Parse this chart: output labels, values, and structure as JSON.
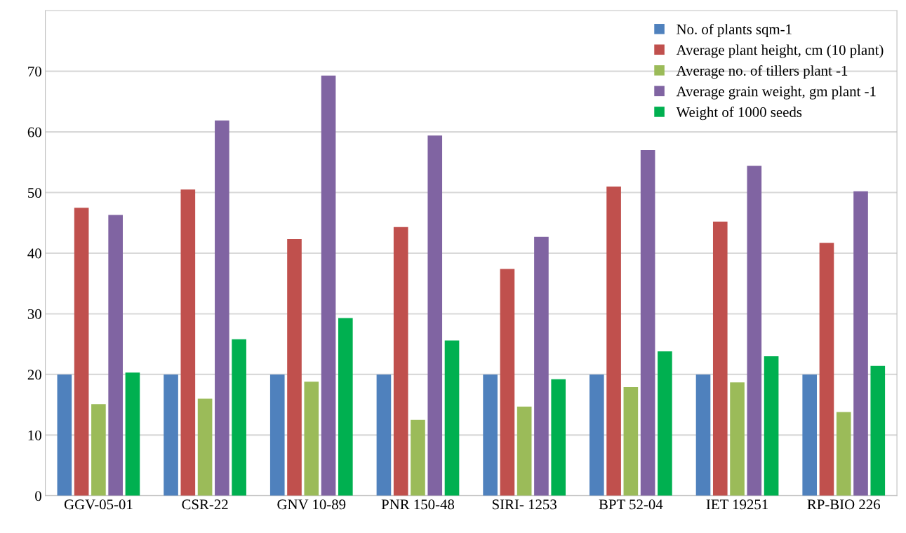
{
  "chart_data": {
    "type": "bar",
    "categories": [
      "GGV-05-01",
      "CSR-22",
      "GNV 10-89",
      "PNR 150-48",
      "SIRI- 1253",
      "BPT 52-04",
      "IET 19251",
      "RP-BIO 226"
    ],
    "series": [
      {
        "name": "No. of plants sqm-1",
        "color": "#4f81bd",
        "values": [
          20,
          20,
          20,
          20,
          20,
          20,
          20,
          20
        ]
      },
      {
        "name": "Average plant height, cm (10 plant)",
        "color": "#c0504d",
        "values": [
          47.5,
          50.5,
          42.3,
          44.3,
          37.4,
          51,
          45.2,
          41.7
        ]
      },
      {
        "name": "Average no. of tillers plant -1",
        "color": "#9bbb59",
        "values": [
          15.1,
          16,
          18.8,
          12.5,
          14.7,
          17.9,
          18.7,
          13.8
        ]
      },
      {
        "name": "Average grain weight, gm plant -1",
        "color": "#8064a2",
        "values": [
          46.3,
          61.9,
          69.3,
          59.4,
          42.7,
          57,
          54.4,
          50.2
        ]
      },
      {
        "name": "Weight of 1000 seeds",
        "color": "#00b050",
        "values": [
          20.3,
          25.8,
          29.3,
          25.6,
          19.2,
          23.8,
          23,
          21.4
        ]
      }
    ],
    "ylim": [
      0,
      80
    ],
    "yticks": [
      0,
      10,
      20,
      30,
      40,
      50,
      60,
      70
    ],
    "grid": "y",
    "legend": "top right"
  }
}
